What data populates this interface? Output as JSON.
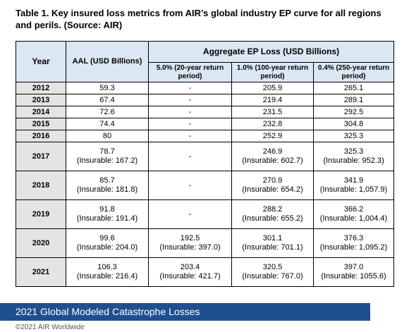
{
  "title": "Table 1. Key insured loss metrics from AIR’s global industry EP curve for all regions and perils. (Source: AIR)",
  "table": {
    "header": {
      "year": "Year",
      "aal": "AAL (USD Billions)",
      "group": "Aggregate EP Loss (USD Billions)",
      "columns": [
        "5.0% (20-year return period)",
        "1.0% (100-year return period)",
        "0.4% (250-year return period)"
      ]
    },
    "rows": [
      [
        "2012",
        "59.3",
        "-",
        "205.9",
        "265.1"
      ],
      [
        "2013",
        "67.4",
        "-",
        "219.4",
        "289.1"
      ],
      [
        "2014",
        "72.6",
        "-",
        "231.5",
        "292.5"
      ],
      [
        "2015",
        "74.4",
        "-",
        "232.8",
        "304.8"
      ],
      [
        "2016",
        "80",
        "-",
        "252.9",
        "325.3"
      ],
      [
        "2017",
        [
          "78.7",
          "(Insurable: 167.2)"
        ],
        "-",
        [
          "246.9",
          "(Insurable: 602.7)"
        ],
        [
          "325.3",
          "(Insurable: 952.3)"
        ]
      ],
      [
        "2018",
        [
          "85.7",
          "(Insurable: 181.8)"
        ],
        "-",
        [
          "270.9",
          "(Insurable: 654.2)"
        ],
        [
          "341.9",
          "(Insurable: 1,057.9)"
        ]
      ],
      [
        "2019",
        [
          "91.8",
          "(Insurable: 191.4)"
        ],
        "-",
        [
          "288.2",
          "(Insurable: 655.2)"
        ],
        [
          "366.2",
          "(Insurable: 1,004.4)"
        ]
      ],
      [
        "2020",
        [
          "99.6",
          "(Insurable: 204.0)"
        ],
        [
          "192.5",
          "(Insurable: 397.0)"
        ],
        [
          "301.1",
          "(Insurable: 701.1)"
        ],
        [
          "376.3",
          "(Insurable: 1,095.2)"
        ]
      ],
      [
        "2021",
        [
          "106.3",
          "(Insurable: 216.4)"
        ],
        [
          "203.4",
          "(Insurable: 421.7)"
        ],
        [
          "320.5",
          "(Insurable: 767.0)"
        ],
        [
          "397.0",
          "(Insurable: 1055.6)"
        ]
      ]
    ]
  },
  "footer": {
    "banner": "2021 Global Modeled Catastrophe Losses",
    "copyright": "©2021 AIR Worldwide"
  }
}
